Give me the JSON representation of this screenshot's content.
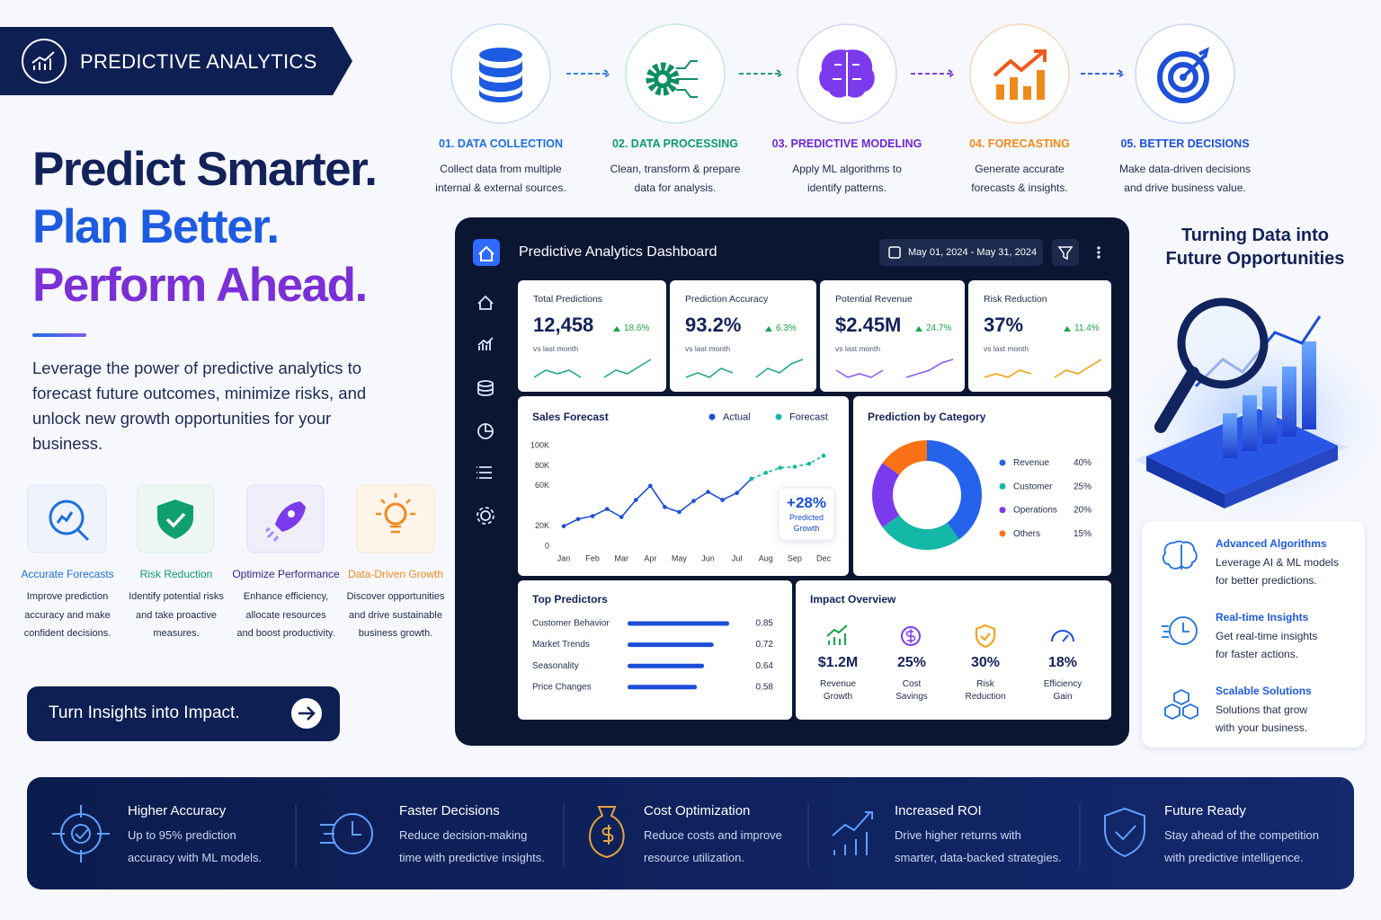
{
  "header": {
    "title": "PREDICTIVE ANALYTICS"
  },
  "hero": {
    "lines": [
      "Predict Smarter.",
      "Plan Better.",
      "Perform Ahead."
    ],
    "text": [
      "Leverage the power of predictive analytics to",
      "forecast future outcomes, minimize risks, and",
      "unlock new growth opportunities for your",
      "business."
    ]
  },
  "features": [
    {
      "title": "Accurate Forecasts",
      "color": "#1d6fe0",
      "text": [
        "Improve prediction",
        "accuracy and make",
        "confident decisions."
      ]
    },
    {
      "title": "Risk Reduction",
      "color": "#0d9b6c",
      "text": [
        "Identify potential risks",
        "and take proactive",
        "measures."
      ]
    },
    {
      "title": "Optimize Performance",
      "color": "#3b1d8f",
      "text": [
        "Enhance efficiency,",
        "allocate resources",
        "and boost productivity."
      ]
    },
    {
      "title": "Data-Driven Growth",
      "color": "#f08a1c",
      "text": [
        "Discover opportunities",
        "and drive sustainable",
        "business growth."
      ]
    }
  ],
  "cta": {
    "label": "Turn Insights into Impact."
  },
  "steps": [
    {
      "title": "01. DATA COLLECTION",
      "color": "#1d6fe0",
      "text": [
        "Collect data from multiple",
        "internal & external sources."
      ]
    },
    {
      "title": "02. DATA PROCESSING",
      "color": "#0d9b6c",
      "text": [
        "Clean, transform & prepare",
        "data for analysis."
      ]
    },
    {
      "title": "03. PREDICTIVE MODELING",
      "color": "#6d28d9",
      "text": [
        "Apply ML algorithms to",
        "identify patterns."
      ]
    },
    {
      "title": "04. FORECASTING",
      "color": "#f08a1c",
      "text": [
        "Generate accurate",
        "forecasts & insights."
      ]
    },
    {
      "title": "05. BETTER DECISIONS",
      "color": "#1d4fd8",
      "text": [
        "Make data-driven decisions",
        "and drive business value."
      ]
    }
  ],
  "dashboard": {
    "title": "Predictive Analytics Dashboard",
    "date_range": "May 01, 2024 - May 31, 2024",
    "kpis": [
      {
        "label": "Total Predictions",
        "value": "12,458",
        "change": "18.6%",
        "note": "vs last month",
        "color": "#22a887",
        "trend": [
          2,
          4,
          3,
          4,
          2,
          null,
          2,
          4,
          3,
          5,
          7
        ]
      },
      {
        "label": "Prediction Accuracy",
        "value": "93.2%",
        "change": "6.3%",
        "note": "vs last month",
        "color": "#22a887",
        "trend": [
          2,
          3,
          2,
          4,
          3,
          null,
          2,
          4,
          3,
          5,
          6
        ]
      },
      {
        "label": "Potential Revenue",
        "value": "$2.45M",
        "change": "24.7%",
        "note": "vs last month",
        "color": "#8b5cf6",
        "trend": [
          4,
          2,
          3,
          2,
          4,
          null,
          2,
          3,
          4,
          6,
          7
        ]
      },
      {
        "label": "Risk Reduction",
        "value": "37%",
        "change": "11.4%",
        "note": "vs last month",
        "color": "#f59e0b",
        "trend": [
          2,
          3,
          2,
          4,
          3,
          null,
          2,
          4,
          3,
          5,
          7
        ]
      }
    ],
    "impact_title": "Impact Overview",
    "impact": [
      {
        "value": "$1.2M",
        "label": [
          "Revenue",
          "Growth"
        ],
        "color": "#16a34a"
      },
      {
        "value": "25%",
        "label": [
          "Cost",
          "Savings"
        ],
        "color": "#7c3aed"
      },
      {
        "value": "30%",
        "label": [
          "Risk",
          "Reduction"
        ],
        "color": "#f59e0b"
      },
      {
        "value": "18%",
        "label": [
          "Efficiency",
          "Gain"
        ],
        "color": "#1d4ed8"
      }
    ]
  },
  "chart_data": [
    {
      "type": "line",
      "title": "Sales Forecast",
      "categories": [
        "Jan",
        null,
        "Feb",
        null,
        "Mar",
        null,
        "Apr",
        null,
        "May",
        null,
        "Jun",
        null,
        "Jul",
        null,
        "Aug",
        null,
        "Sep",
        null,
        "Dec"
      ],
      "series": [
        {
          "name": "Actual",
          "color": "#1d4ed8",
          "values": [
            20,
            27,
            30,
            37,
            29,
            46,
            60,
            39,
            34,
            45,
            54,
            46,
            53,
            67,
            null,
            null,
            null,
            null,
            null
          ]
        },
        {
          "name": "Forecast",
          "color": "#14b8a6",
          "dashed": true,
          "values": [
            null,
            null,
            null,
            null,
            null,
            null,
            null,
            null,
            null,
            null,
            null,
            null,
            null,
            67,
            73,
            78,
            79,
            82,
            90
          ]
        }
      ],
      "ylim": [
        0,
        100
      ],
      "yticks": [
        0,
        {
          "value": 20,
          "label": "20K"
        },
        {
          "value": 60,
          "label": "60K"
        },
        {
          "value": 80,
          "label": "80K"
        },
        {
          "value": 100,
          "label": "100K"
        }
      ],
      "grid": false,
      "annotation": {
        "text": "+28%",
        "note": [
          "Predicted",
          "Growth"
        ]
      }
    },
    {
      "type": "pie",
      "title": "Prediction by Category",
      "categories": [
        "Revenue",
        "Customer",
        "Operations",
        "Others"
      ],
      "values": [
        40,
        25,
        20,
        15
      ],
      "value_labels": [
        "40%",
        "25%",
        "20%",
        "15%"
      ],
      "colors": [
        "#2563eb",
        "#14b8a6",
        "#7c3aed",
        "#f97316"
      ],
      "donut": true
    },
    {
      "type": "hbar",
      "title": "Top Predictors",
      "categories": [
        "Customer Behavior",
        "Market Trends",
        "Seasonality",
        "Price Changes"
      ],
      "values": [
        0.85,
        0.72,
        0.64,
        0.58
      ],
      "xlim": [
        0,
        1
      ],
      "color": "#1d4ed8"
    }
  ],
  "side": {
    "title": [
      "Turning Data into",
      "Future Opportunities"
    ],
    "items": [
      {
        "title": "Advanced Algorithms",
        "text": [
          "Leverage AI & ML models",
          "for better predictions."
        ]
      },
      {
        "title": "Real-time Insights",
        "text": [
          "Get real-time insights",
          "for faster actions."
        ]
      },
      {
        "title": "Scalable Solutions",
        "text": [
          "Solutions that grow",
          "with your business."
        ]
      }
    ]
  },
  "benefits": [
    {
      "title": "Higher Accuracy",
      "text": [
        "Up to 95% prediction",
        "accuracy with ML models."
      ]
    },
    {
      "title": "Faster Decisions",
      "text": [
        "Reduce decision-making",
        "time with predictive insights."
      ]
    },
    {
      "title": "Cost Optimization",
      "text": [
        "Reduce costs and improve",
        "resource utilization."
      ]
    },
    {
      "title": "Increased ROI",
      "text": [
        "Drive higher returns with",
        "smarter, data-backed strategies."
      ]
    },
    {
      "title": "Future Ready",
      "text": [
        "Stay ahead of the competition",
        "with predictive intelligence."
      ]
    }
  ]
}
